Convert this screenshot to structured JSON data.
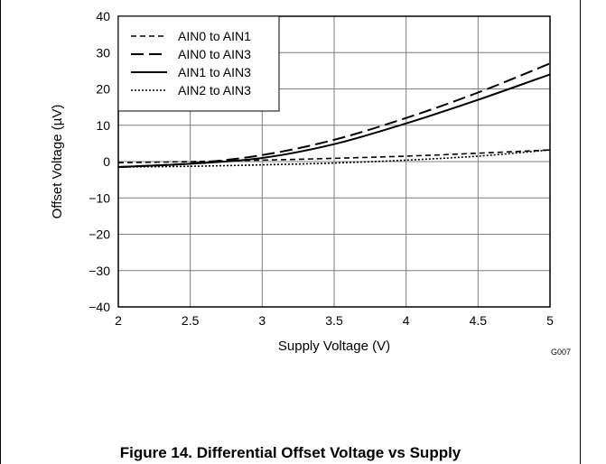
{
  "figure": {
    "code": "G007",
    "caption": "Figure 14. Differential Offset Voltage vs Supply"
  },
  "chart_data": {
    "type": "line",
    "title": "",
    "xlabel": "Supply Voltage (V)",
    "ylabel": "Offset Voltage (µV)",
    "xlim": [
      2,
      5
    ],
    "ylim": [
      -40,
      40
    ],
    "x_ticks": [
      2,
      2.5,
      3,
      3.5,
      4,
      4.5,
      5
    ],
    "y_ticks": [
      -40,
      -30,
      -20,
      -10,
      0,
      10,
      20,
      30,
      40
    ],
    "grid": true,
    "legend_position": "top-left",
    "series": [
      {
        "name": "AIN0 to AIN1",
        "style": "short-dash",
        "x": [
          2,
          2.5,
          3,
          3.5,
          4,
          4.5,
          5
        ],
        "y": [
          -0.3,
          0.0,
          0.4,
          0.9,
          1.5,
          2.3,
          3.2
        ]
      },
      {
        "name": "AIN0 to AIN3",
        "style": "long-dash",
        "x": [
          2,
          2.5,
          3,
          3.5,
          4,
          4.5,
          5
        ],
        "y": [
          -1.5,
          -0.5,
          1.8,
          6.0,
          12.0,
          19.0,
          27.0
        ]
      },
      {
        "name": "AIN1 to AIN3",
        "style": "solid",
        "x": [
          2,
          2.5,
          3,
          3.5,
          4,
          4.5,
          5
        ],
        "y": [
          -1.5,
          -0.6,
          1.0,
          4.8,
          10.5,
          17.0,
          24.0
        ]
      },
      {
        "name": "AIN2 to AIN3",
        "style": "dotted",
        "x": [
          2,
          2.5,
          3,
          3.5,
          4,
          4.5,
          5
        ],
        "y": [
          -1.5,
          -1.3,
          -0.9,
          -0.4,
          0.4,
          1.5,
          3.2
        ]
      }
    ]
  }
}
